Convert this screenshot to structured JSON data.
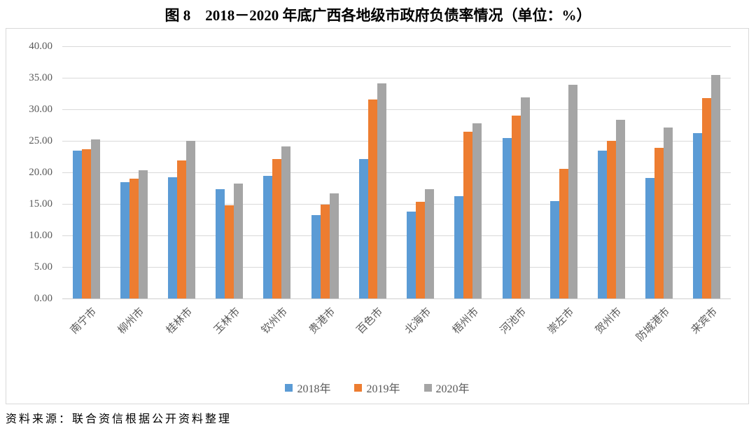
{
  "title": "图 8　2018－2020 年底广西各地级市政府负债率情况（单位：%）",
  "footer": "资料来源：联合资信根据公开资料整理",
  "chart_data": {
    "type": "bar",
    "title": "图 8 2018－2020 年底广西各地级市政府负债率情况",
    "unit": "%",
    "categories": [
      "南宁市",
      "柳州市",
      "桂林市",
      "玉林市",
      "钦州市",
      "贵港市",
      "百色市",
      "北海市",
      "梧州市",
      "河池市",
      "崇左市",
      "贺州市",
      "防城港市",
      "来宾市"
    ],
    "series": [
      {
        "name": "2018年",
        "color": "#5B9BD5",
        "values": [
          23.4,
          18.4,
          19.2,
          17.3,
          19.5,
          13.2,
          22.1,
          13.8,
          16.2,
          25.5,
          15.4,
          23.5,
          19.1,
          26.2
        ]
      },
      {
        "name": "2019年",
        "color": "#ED7D31",
        "values": [
          23.7,
          19.0,
          21.9,
          14.8,
          22.1,
          14.9,
          31.6,
          15.3,
          26.5,
          29.0,
          20.6,
          25.0,
          23.9,
          31.8
        ]
      },
      {
        "name": "2020年",
        "color": "#A5A5A5",
        "values": [
          25.2,
          20.3,
          25.0,
          18.2,
          24.1,
          16.7,
          34.1,
          17.3,
          27.8,
          31.9,
          33.9,
          28.3,
          27.1,
          35.5
        ]
      }
    ],
    "ylim": [
      0,
      40
    ],
    "ytick_step": 5,
    "ytick_labels": [
      "0.00",
      "5.00",
      "10.00",
      "15.00",
      "20.00",
      "25.00",
      "30.00",
      "35.00",
      "40.00"
    ],
    "grid": true,
    "legend_position": "bottom",
    "gridline_color": "#D9D9D9",
    "tick_label_color": "#595959"
  }
}
